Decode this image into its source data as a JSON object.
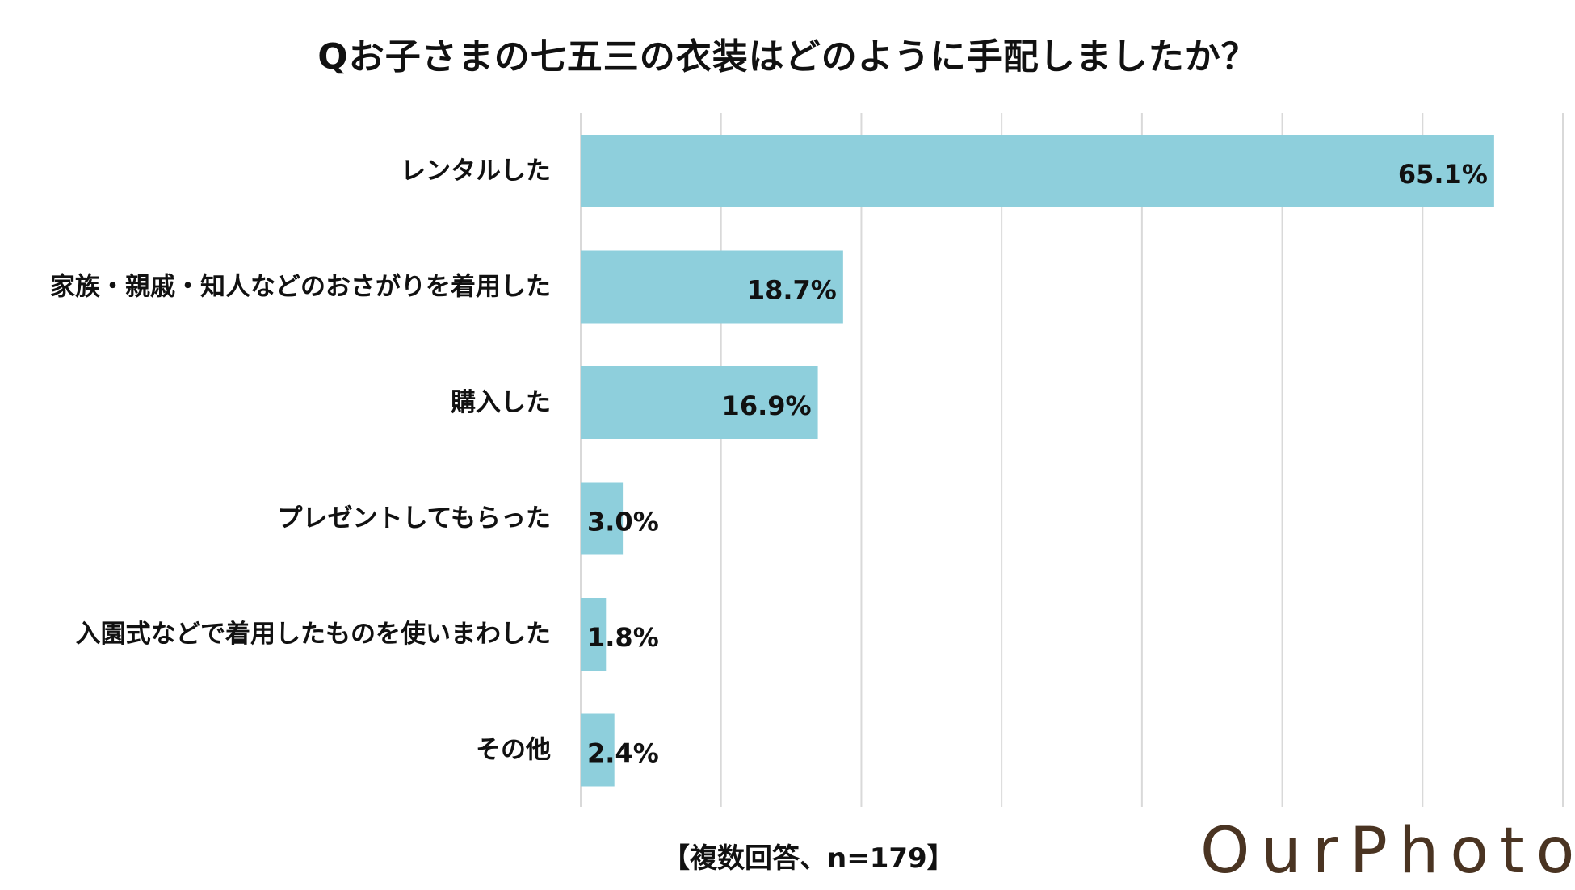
{
  "chart_data": {
    "type": "bar",
    "orientation": "horizontal",
    "title": "Qお子さまの七五三の衣装はどのように手配しましたか？",
    "categories": [
      "レンタルした",
      "家族・親戚・知人などのおさがりを着用した",
      "購入した",
      "プレゼントしてもらった",
      "入園式などで着用したものを使いまわした",
      "その他"
    ],
    "values": [
      65.1,
      18.7,
      16.9,
      3.0,
      1.8,
      2.4
    ],
    "value_labels": [
      "65.1%",
      "18.7%",
      "16.9%",
      "3.0%",
      "1.8%",
      "2.4%"
    ],
    "xlim": [
      0,
      70
    ],
    "grid": true,
    "bar_color": "#8ecfdc",
    "grid_color": "#d9d9d9"
  },
  "footnote": "【複数回答、n=179】",
  "logo": {
    "text": "OurPhoto",
    "color": "#4a3422"
  }
}
